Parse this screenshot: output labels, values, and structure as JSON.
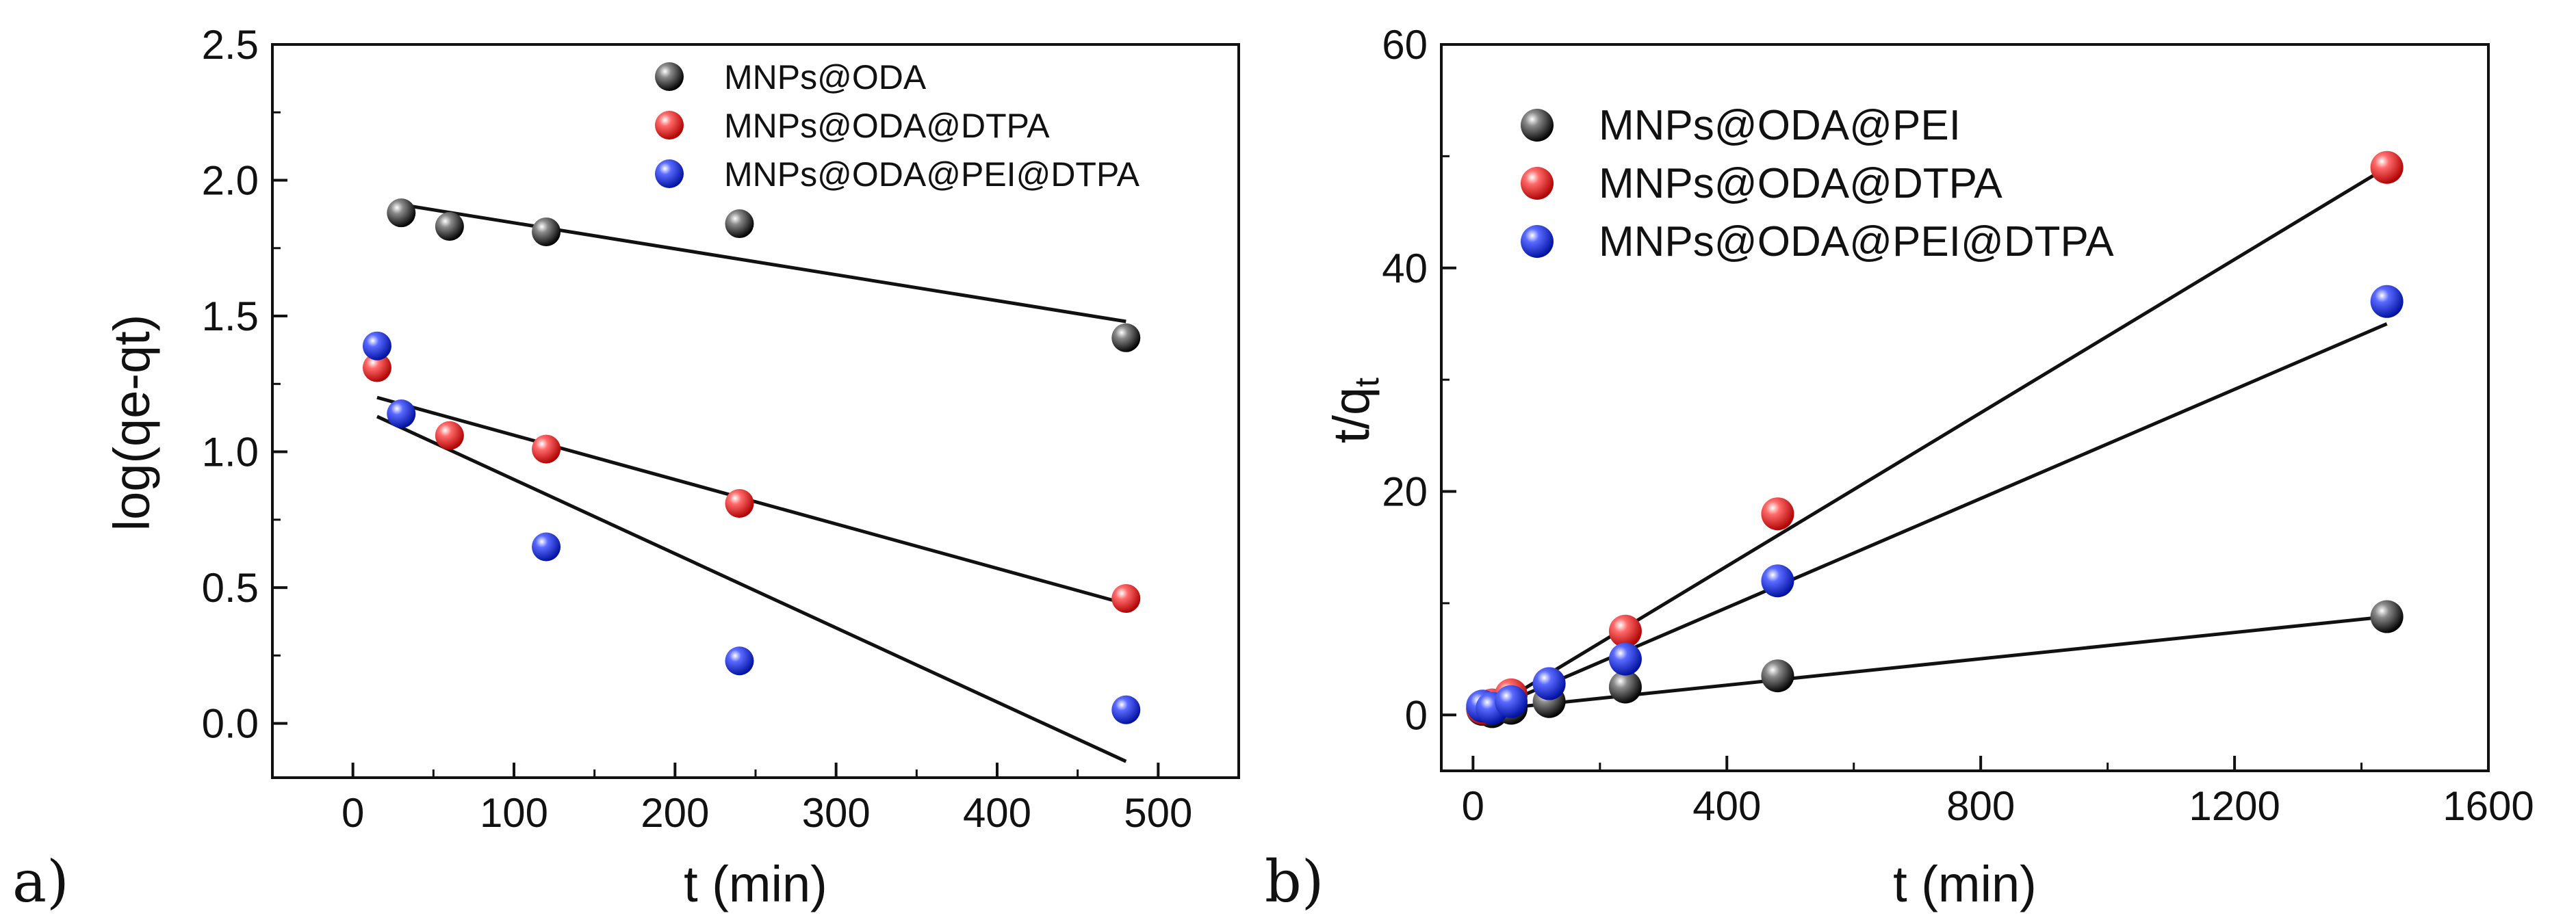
{
  "chart_data": [
    {
      "type": "scatter",
      "panel_label": "a)",
      "xlabel": "t (min)",
      "ylabel": "log(qe-qt)",
      "xlim": [
        -50,
        550
      ],
      "ylim": [
        -0.2,
        2.5
      ],
      "xticks": [
        0,
        100,
        200,
        300,
        400,
        500
      ],
      "xtick_labels": [
        "0",
        "100",
        "200",
        "300",
        "400",
        "500"
      ],
      "yticks": [
        0.0,
        0.5,
        1.0,
        1.5,
        2.0,
        2.5
      ],
      "ytick_labels": [
        "0.0",
        "0.5",
        "1.0",
        "1.5",
        "2.0",
        "2.5"
      ],
      "legend_position": "top-right",
      "series": [
        {
          "name": "MNPs@ODA",
          "color": "#1a1a1a",
          "x": [
            30,
            60,
            120,
            240,
            480
          ],
          "y": [
            1.88,
            1.83,
            1.81,
            1.84,
            1.42
          ],
          "fit": {
            "x": [
              30,
              480
            ],
            "y": [
              1.91,
              1.48
            ]
          }
        },
        {
          "name": "MNPs@ODA@DTPA",
          "color": "#e8141c",
          "x": [
            15,
            60,
            120,
            240,
            480
          ],
          "y": [
            1.31,
            1.06,
            1.01,
            0.81,
            0.46
          ],
          "fit": {
            "x": [
              15,
              480
            ],
            "y": [
              1.2,
              0.44
            ]
          }
        },
        {
          "name": "MNPs@ODA@PEI@DTPA",
          "color": "#1f2fe0",
          "x": [
            15,
            30,
            120,
            240,
            480
          ],
          "y": [
            1.39,
            1.14,
            0.65,
            0.23,
            0.05
          ],
          "fit": {
            "x": [
              15,
              480
            ],
            "y": [
              1.13,
              -0.14
            ]
          }
        }
      ]
    },
    {
      "type": "scatter",
      "panel_label": "b)",
      "xlabel": "t (min)",
      "ylabel": "t/q",
      "ylabel_sub": "t",
      "xlim": [
        -50,
        1600
      ],
      "ylim": [
        -5,
        60
      ],
      "xticks": [
        0,
        400,
        800,
        1200,
        1600
      ],
      "xtick_labels": [
        "0",
        "400",
        "800",
        "1200",
        "1600"
      ],
      "yticks": [
        0,
        20,
        40,
        60
      ],
      "ytick_labels": [
        "0",
        "20",
        "40",
        "60"
      ],
      "legend_position": "top-left",
      "series": [
        {
          "name": "MNPs@ODA@PEI",
          "color": "#1a1a1a",
          "x": [
            15,
            30,
            60,
            120,
            240,
            480,
            1440
          ],
          "y": [
            0.5,
            0.3,
            0.6,
            1.2,
            2.5,
            3.5,
            8.8
          ],
          "fit": {
            "x": [
              15,
              1440
            ],
            "y": [
              0.4,
              8.8
            ]
          }
        },
        {
          "name": "MNPs@ODA@DTPA",
          "color": "#e8141c",
          "x": [
            15,
            30,
            60,
            120,
            240,
            480,
            1440
          ],
          "y": [
            0.6,
            0.9,
            1.8,
            2.8,
            7.5,
            18.0,
            49.0
          ],
          "fit": {
            "x": [
              15,
              1440
            ],
            "y": [
              0.1,
              49.0
            ]
          }
        },
        {
          "name": "MNPs@ODA@PEI@DTPA",
          "color": "#1f2fe0",
          "x": [
            15,
            30,
            60,
            120,
            240,
            480,
            1440
          ],
          "y": [
            0.8,
            0.6,
            1.2,
            2.8,
            5.0,
            12.0,
            37.0
          ],
          "fit": {
            "x": [
              15,
              1440
            ],
            "y": [
              0.2,
              35.0
            ]
          }
        }
      ]
    }
  ]
}
